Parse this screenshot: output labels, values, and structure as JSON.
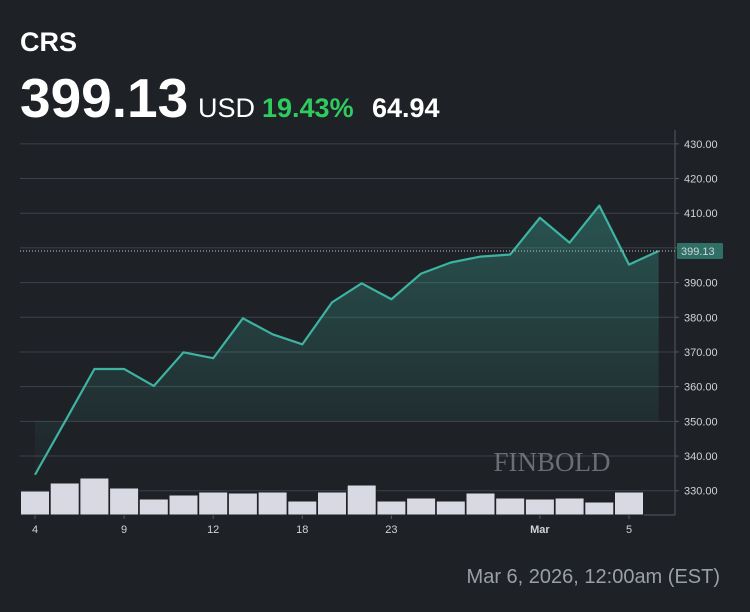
{
  "header": {
    "ticker": "CRS",
    "price": "399.13",
    "currency": "USD",
    "change_pct": "19.43%",
    "change": "64.94"
  },
  "chart_data": {
    "type": "line",
    "categories": [
      "4",
      null,
      null,
      "9",
      null,
      null,
      "12",
      null,
      null,
      "18",
      null,
      null,
      "23",
      null,
      null,
      null,
      null,
      "Mar",
      null,
      null,
      "5",
      null
    ],
    "values": [
      334.6,
      349.8,
      365.1,
      365.1,
      360.2,
      369.9,
      368.2,
      379.7,
      375.1,
      372.2,
      384.3,
      389.8,
      385.2,
      392.6,
      395.8,
      397.5,
      398.1,
      408.7,
      401.5,
      412.2,
      395.2,
      399.13
    ],
    "color": "#3db3a1",
    "ylim": [
      323,
      434
    ],
    "yticks": [
      {
        "value": 430,
        "label": "430.00"
      },
      {
        "value": 420,
        "label": "420.00"
      },
      {
        "value": 410,
        "label": "410.00"
      },
      {
        "value": 400,
        "label": "400.00"
      },
      {
        "value": 390,
        "label": "390.00"
      },
      {
        "value": 380,
        "label": "380.00"
      },
      {
        "value": 370,
        "label": "370.00"
      },
      {
        "value": 360,
        "label": "360.00"
      },
      {
        "value": 350,
        "label": "350.00"
      },
      {
        "value": 340,
        "label": "340.00"
      },
      {
        "value": 330,
        "label": "330.00"
      }
    ],
    "last_price": 399.13,
    "grid": true,
    "volume": [
      24,
      32,
      37,
      27,
      16,
      20,
      23,
      22,
      23,
      14,
      23,
      30,
      14,
      17,
      14,
      22,
      17,
      16,
      17,
      13,
      23,
      null
    ],
    "volume_lim": [
      0,
      40
    ],
    "volume_color": "#d9d9e3",
    "watermark": "FINBOLD",
    "timestamp": "Mar 6, 2026, 12:00am (EST)"
  }
}
